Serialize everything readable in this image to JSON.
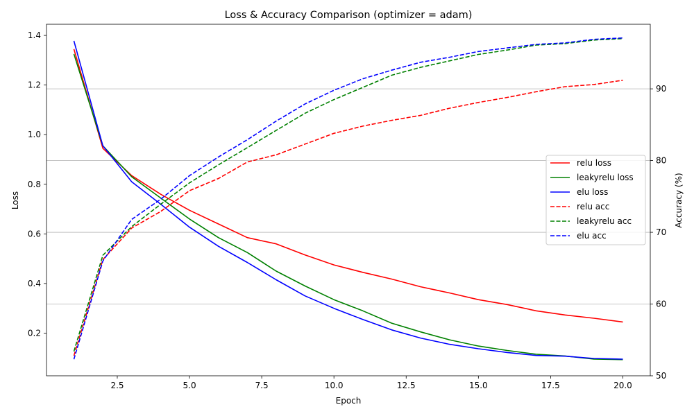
{
  "chart_data": {
    "type": "line",
    "title": "Loss & Accuracy Comparison (optimizer = adam)",
    "xlabel": "Epoch",
    "ylabel": "Loss",
    "y2label": "Accuracy (%)",
    "xlim": [
      0.05,
      20.95
    ],
    "ylim": [
      0.028,
      1.445
    ],
    "y2lim": [
      50,
      99
    ],
    "xticks": [
      "2.5",
      "5.0",
      "7.5",
      "10.0",
      "12.5",
      "15.0",
      "17.5",
      "20.0"
    ],
    "yticks": [
      "0.2",
      "0.4",
      "0.6",
      "0.8",
      "1.0",
      "1.2",
      "1.4"
    ],
    "y2ticks": [
      "50",
      "60",
      "70",
      "80",
      "90"
    ],
    "grid": "right-axis horizontal",
    "legend_position": "center-right",
    "x": [
      1,
      2,
      3,
      4,
      5,
      6,
      7,
      8,
      9,
      10,
      11,
      12,
      13,
      14,
      15,
      16,
      17,
      18,
      19,
      20
    ],
    "series": [
      {
        "name": "relu loss",
        "axis": "left",
        "style": "solid",
        "color": "#ff0000",
        "values": [
          1.345,
          0.945,
          0.835,
          0.76,
          0.695,
          0.64,
          0.585,
          0.56,
          0.515,
          0.475,
          0.445,
          0.418,
          0.387,
          0.362,
          0.335,
          0.315,
          0.29,
          0.273,
          0.26,
          0.245
        ]
      },
      {
        "name": "leakyrelu loss",
        "axis": "left",
        "style": "solid",
        "color": "#008000",
        "values": [
          1.325,
          0.955,
          0.83,
          0.745,
          0.66,
          0.585,
          0.525,
          0.45,
          0.39,
          0.335,
          0.29,
          0.24,
          0.205,
          0.173,
          0.148,
          0.13,
          0.115,
          0.108,
          0.095,
          0.093
        ]
      },
      {
        "name": "elu loss",
        "axis": "left",
        "style": "solid",
        "color": "#0000ff",
        "values": [
          1.378,
          0.955,
          0.81,
          0.72,
          0.627,
          0.55,
          0.485,
          0.415,
          0.35,
          0.3,
          0.255,
          0.213,
          0.18,
          0.155,
          0.137,
          0.122,
          0.11,
          0.107,
          0.098,
          0.095
        ]
      },
      {
        "name": "relu acc",
        "axis": "right",
        "style": "dashed",
        "color": "#ff0000",
        "values": [
          52.8,
          66.2,
          70.6,
          72.9,
          75.8,
          77.5,
          79.8,
          80.8,
          82.3,
          83.8,
          84.8,
          85.6,
          86.3,
          87.3,
          88.1,
          88.8,
          89.6,
          90.3,
          90.6,
          91.2
        ]
      },
      {
        "name": "leakyrelu acc",
        "axis": "right",
        "style": "dashed",
        "color": "#008000",
        "values": [
          53.4,
          66.8,
          70.8,
          73.9,
          76.9,
          79.4,
          81.8,
          84.2,
          86.6,
          88.5,
          90.2,
          91.9,
          93.0,
          93.9,
          94.8,
          95.4,
          96.1,
          96.3,
          96.8,
          97.0
        ]
      },
      {
        "name": "elu acc",
        "axis": "right",
        "style": "dashed",
        "color": "#0000ff",
        "values": [
          52.3,
          66.0,
          71.8,
          74.6,
          77.9,
          80.5,
          82.9,
          85.5,
          87.9,
          89.8,
          91.4,
          92.6,
          93.7,
          94.4,
          95.2,
          95.7,
          96.2,
          96.4,
          96.9,
          97.1
        ]
      }
    ]
  }
}
